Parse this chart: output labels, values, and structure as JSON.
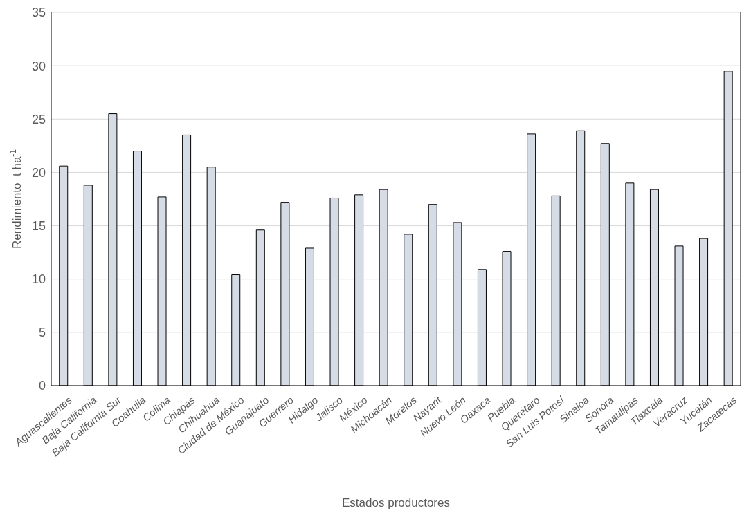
{
  "chart_data": {
    "type": "bar",
    "xlabel": "Estados productores",
    "ylabel": "Rendimiento  t ha$^{-1}$",
    "categories": [
      "Aguascalientes",
      "Baja California",
      "Baja California Sur",
      "Coahuila",
      "Colima",
      "Chiapas",
      "Chihuahua",
      "Ciudad de México",
      "Guanajuato",
      "Guerrero",
      "Hidalgo",
      "Jalisco",
      "México",
      "Michoacán",
      "Morelos",
      "Nayarit",
      "Nuevo León",
      "Oaxaca",
      "Puebla",
      "Querétaro",
      "San Luis Potosí",
      "Sinaloa",
      "Sonora",
      "Tamaulipas",
      "Tlaxcala",
      "Veracruz",
      "Yucatán",
      "Zacatecas"
    ],
    "values": [
      20.6,
      18.8,
      25.5,
      22.0,
      17.7,
      23.5,
      20.5,
      10.4,
      14.6,
      17.2,
      12.9,
      17.6,
      17.9,
      18.4,
      14.2,
      17.0,
      15.3,
      10.9,
      12.6,
      23.6,
      17.8,
      23.9,
      22.7,
      19.0,
      18.4,
      13.1,
      13.8,
      29.5
    ],
    "color": "#d6dce5",
    "ylim": [
      0,
      35
    ],
    "yticks": [
      0,
      5,
      10,
      15,
      20,
      25,
      30,
      35
    ],
    "grid": "y"
  }
}
